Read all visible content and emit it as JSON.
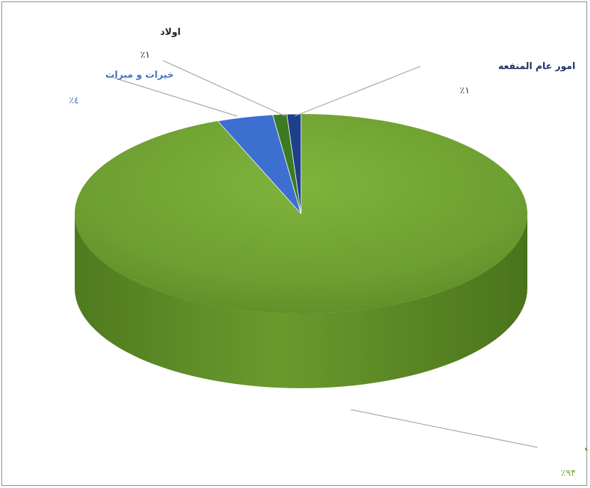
{
  "chart_data": {
    "type": "pie",
    "title": "",
    "style": "3d",
    "legend": "none",
    "slices": [
      {
        "name": "عزاداری",
        "value": 94,
        "label": "عزاداری",
        "percent_label": "٪۹۴",
        "color": "#6f9f2f",
        "label_color": "#76a63a"
      },
      {
        "name": "خیرات و مبرات",
        "value": 4,
        "label": "خیرات و مبرات",
        "percent_label": "٪٤",
        "color": "#3c6fd0",
        "label_color": "#4472c4"
      },
      {
        "name": "اولاد",
        "value": 1,
        "label": "اولاد",
        "percent_label": "٪۱",
        "color": "#3d7a24",
        "label_color": "#262626"
      },
      {
        "name": "امور عام المنفعه",
        "value": 1,
        "label": "امور عام المنفعه",
        "percent_label": "٪۱",
        "color": "#1f3e8c",
        "label_color": "#1f3864"
      }
    ]
  }
}
